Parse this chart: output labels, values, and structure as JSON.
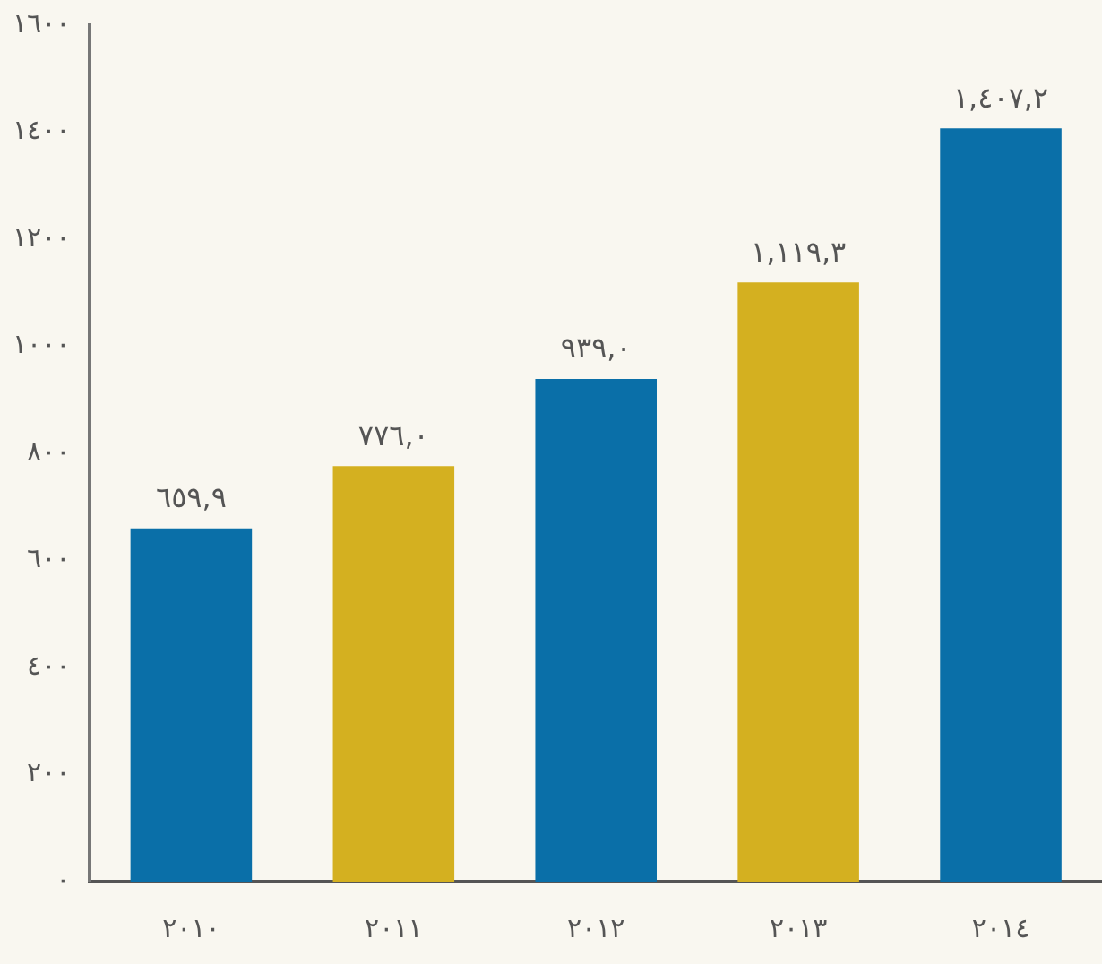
{
  "chart_data": {
    "type": "bar",
    "categories": [
      "٢٠١٠",
      "٢٠١١",
      "٢٠١٢",
      "٢٠١٣",
      "٢٠١٤"
    ],
    "values": [
      659.9,
      776.0,
      939.0,
      1119.3,
      1407.2
    ],
    "colors": [
      "#0a6fa8",
      "#d4b020",
      "#0a6fa8",
      "#d4b020",
      "#0a6fa8"
    ],
    "value_labels": [
      "٦٥٩,٩",
      "٧٧٦,٠",
      "٩٣٩,٠",
      "١,١١٩,٣",
      "١,٤٠٧,٢"
    ],
    "ylim": [
      0,
      1600
    ],
    "yticks": [
      {
        "value": 0,
        "label": "٠"
      },
      {
        "value": 200,
        "label": "٢٠٠"
      },
      {
        "value": 400,
        "label": "٤٠٠"
      },
      {
        "value": 600,
        "label": "٦٠٠"
      },
      {
        "value": 800,
        "label": "٨٠٠"
      },
      {
        "value": 1000,
        "label": "١٠٠٠"
      },
      {
        "value": 1200,
        "label": "١٢٠٠"
      },
      {
        "value": 1400,
        "label": "١٤٠٠"
      },
      {
        "value": 1600,
        "label": "١٦٠٠"
      }
    ],
    "grid": false,
    "legend": false
  }
}
